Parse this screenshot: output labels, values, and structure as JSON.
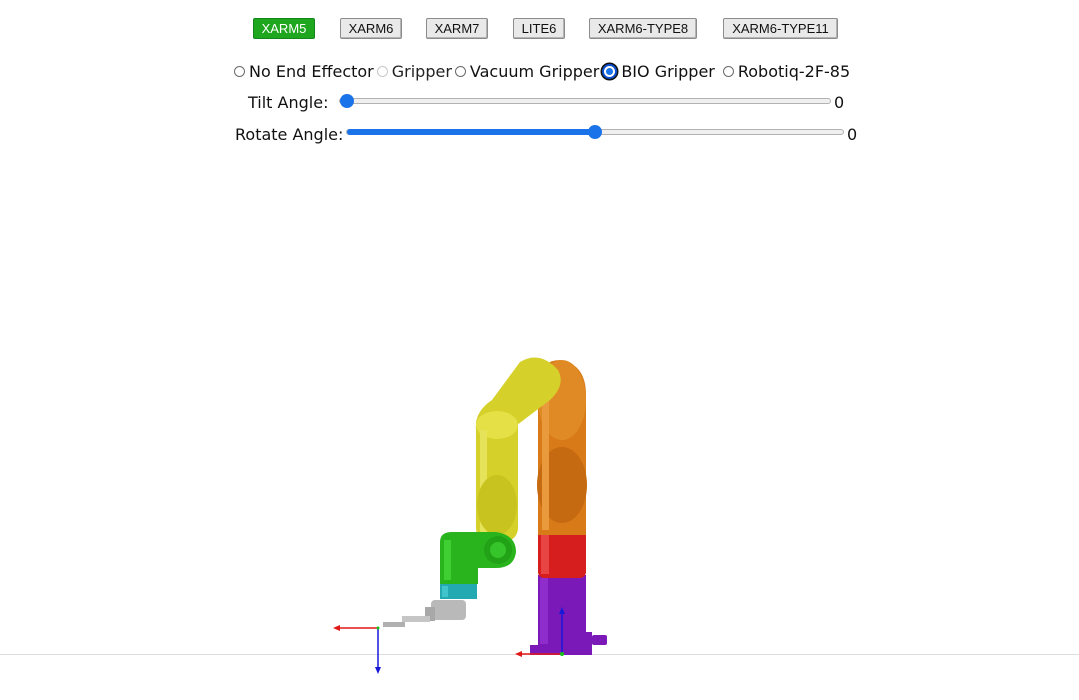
{
  "models": [
    {
      "label": "XARM5",
      "active": true
    },
    {
      "label": "XARM6",
      "active": false
    },
    {
      "label": "XARM7",
      "active": false
    },
    {
      "label": "LITE6",
      "active": false
    },
    {
      "label": "XARM6-TYPE8",
      "active": false
    },
    {
      "label": "XARM6-TYPE11",
      "active": false
    }
  ],
  "end_effectors": {
    "options": [
      {
        "label": "No End Effector",
        "checked": false,
        "disabled": false
      },
      {
        "label": "Gripper",
        "checked": false,
        "disabled": true
      },
      {
        "label": "Vacuum Gripper",
        "checked": false,
        "disabled": false
      },
      {
        "label": "BIO Gripper",
        "checked": true,
        "disabled": false
      },
      {
        "label": "Robotiq-2F-85",
        "checked": false,
        "disabled": false
      }
    ]
  },
  "sliders": {
    "tilt": {
      "label": "Tilt Angle:",
      "value": "0",
      "position_fraction": 0.0
    },
    "rotate": {
      "label": "Rotate Angle:",
      "value": "0",
      "position_fraction": 0.5
    }
  },
  "colors": {
    "accent": "#1a73e8",
    "active_button": "#1fa61f",
    "link_base": "#7a18b8",
    "link_1": "#d61e1e",
    "link_2": "#d87a18",
    "link_3": "#d6d12a",
    "link_4": "#29b41d",
    "link_5": "#22a9b2",
    "end_effector": "#b9b9b9",
    "axis_x": "#e01818",
    "axis_y": "#18c018",
    "axis_z": "#1818d8"
  }
}
